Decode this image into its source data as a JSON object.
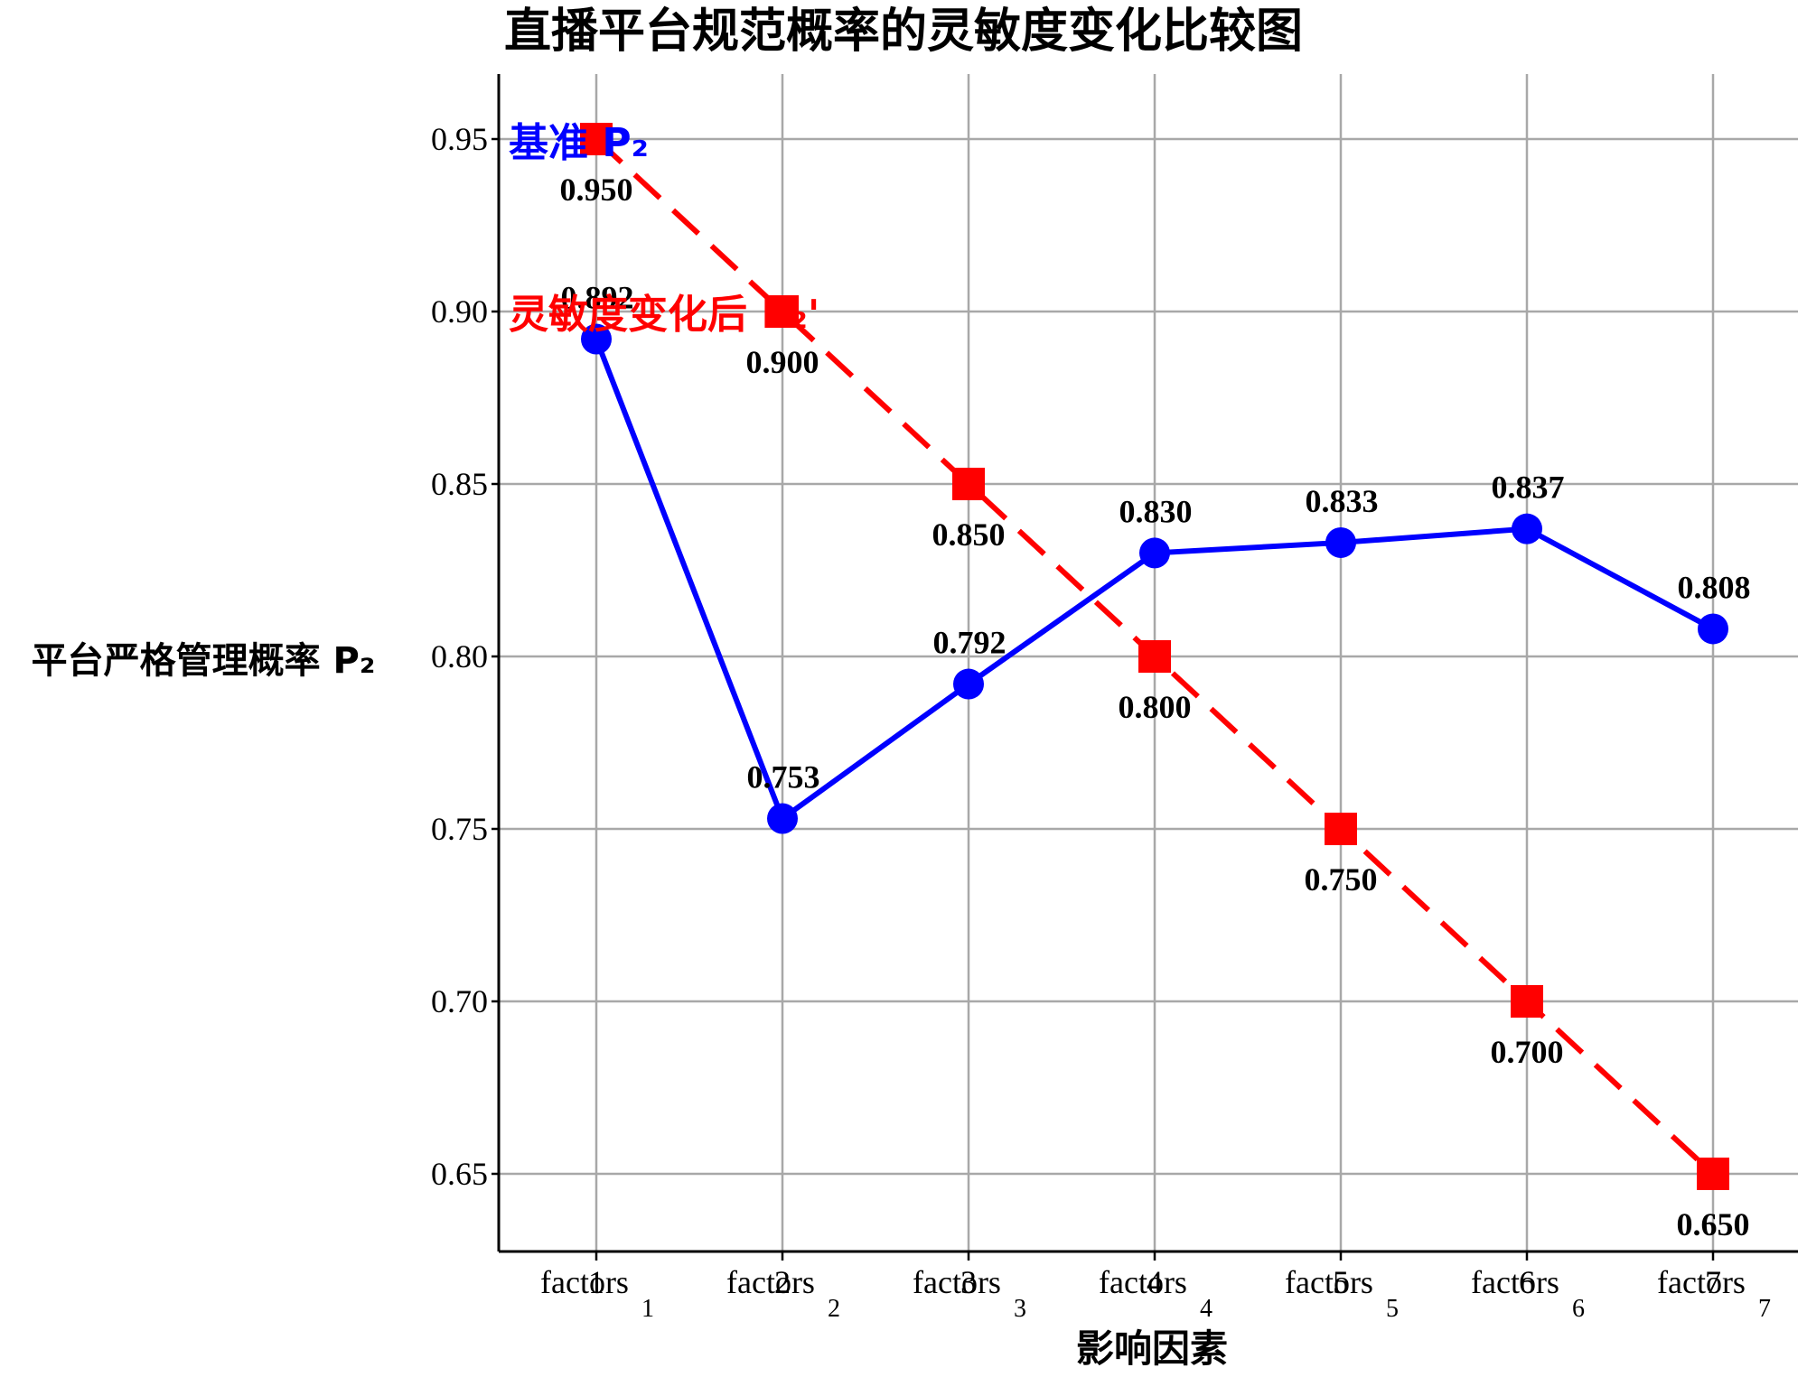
{
  "chart_data": {
    "type": "line",
    "title": "直播平台规范概率的灵敏度变化比较图",
    "xlabel": "影响因素",
    "ylabel": "平台严格管理概率 P₂",
    "ylim": [
      0.625,
      0.97
    ],
    "yticks": [
      0.65,
      0.7,
      0.75,
      0.8,
      0.85,
      0.9,
      0.95
    ],
    "ytick_labels": [
      "0.65",
      "0.70",
      "0.75",
      "0.80",
      "0.85",
      "0.90",
      "0.95"
    ],
    "categories": [
      "factors1",
      "factors2",
      "factors3",
      "factors4",
      "factors5",
      "factors6",
      "factors7"
    ],
    "category_labels": [
      {
        "text": "factors",
        "sub": "1"
      },
      {
        "text": "factors",
        "sub": "2"
      },
      {
        "text": "factors",
        "sub": "3"
      },
      {
        "text": "factors",
        "sub": "4"
      },
      {
        "text": "factors",
        "sub": "5"
      },
      {
        "text": "factors",
        "sub": "6"
      },
      {
        "text": "factors",
        "sub": "7"
      }
    ],
    "x_overlay_numbers": [
      "1",
      "2",
      "3",
      "4",
      "5",
      "6",
      "7"
    ],
    "grid": true,
    "legend_placement": "top-left",
    "series": [
      {
        "name": "基准 P₂",
        "color": "#0000ff",
        "style": "solid",
        "marker": "circle",
        "values": [
          0.892,
          0.753,
          0.792,
          0.83,
          0.833,
          0.837,
          0.808
        ],
        "data_labels": [
          "0.892",
          "0.753",
          "0.792",
          "0.830",
          "0.833",
          "0.837",
          "0.808"
        ]
      },
      {
        "name": "灵敏度变化后 P₂'",
        "color": "#ff0000",
        "style": "dashed",
        "marker": "square",
        "values": [
          0.95,
          0.9,
          0.85,
          0.8,
          0.75,
          0.7,
          0.65
        ],
        "data_labels": [
          "0.950",
          "0.900",
          "0.850",
          "0.800",
          "0.750",
          "0.700",
          "0.650"
        ]
      }
    ]
  }
}
